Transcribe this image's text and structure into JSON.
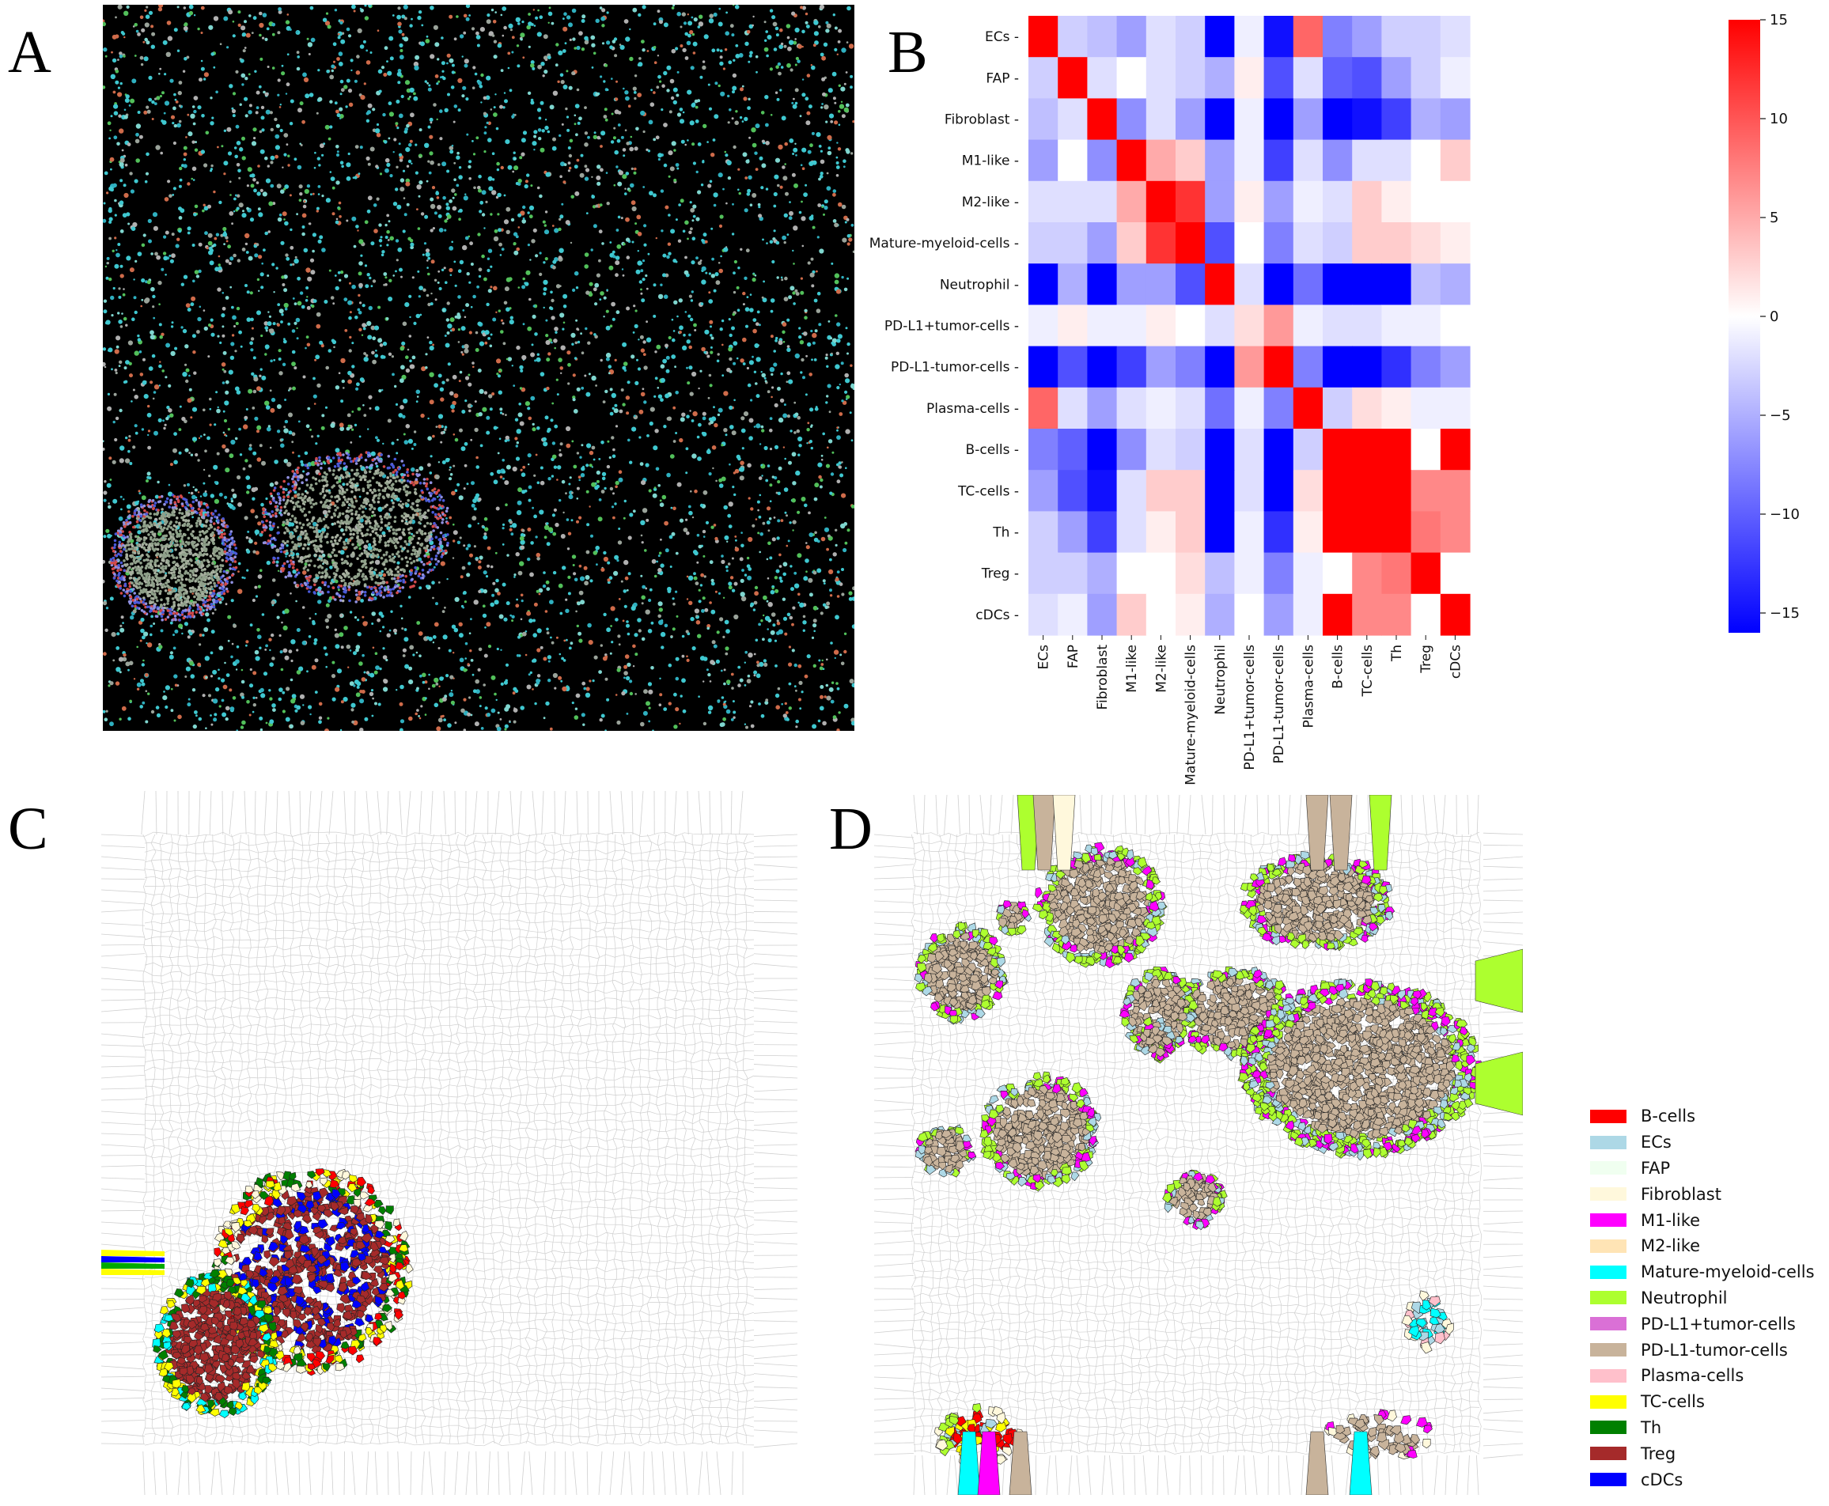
{
  "panels": {
    "a": "A",
    "b": "B",
    "c": "C",
    "d": "D"
  },
  "colors": {
    "heat_low": "#0000ff",
    "heat_mid": "#ffffff",
    "heat_high": "#ff0000",
    "tissue_background": "#000000",
    "voronoi_edge": "#cfcfcf"
  },
  "chart_data": {
    "type": "heatmap",
    "rows": [
      "ECs",
      "FAP",
      "Fibroblast",
      "M1-like",
      "M2-like",
      "Mature-myeloid-cells",
      "Neutrophil",
      "PD-L1+tumor-cells",
      "PD-L1-tumor-cells",
      "Plasma-cells",
      "B-cells",
      "TC-cells",
      "Th",
      "Treg",
      "cDCs"
    ],
    "columns": [
      "ECs",
      "FAP",
      "Fibroblast",
      "M1-like",
      "M2-like",
      "Mature-myeloid-cells",
      "Neutrophil",
      "PD-L1+tumor-cells",
      "PD-L1-tumor-cells",
      "Plasma-cells",
      "B-cells",
      "TC-cells",
      "Th",
      "Treg",
      "cDCs"
    ],
    "values": [
      [
        15,
        -3,
        -4,
        -6,
        -2,
        -3,
        -16,
        -1,
        -15,
        9,
        -8,
        -6,
        -3,
        -3,
        -2
      ],
      [
        -3,
        15,
        -2,
        0,
        -2,
        -3,
        -5,
        1,
        -11,
        -2,
        -10,
        -11,
        -6,
        -3,
        -1
      ],
      [
        -4,
        -2,
        15,
        -7,
        -2,
        -6,
        -16,
        -1,
        -16,
        -6,
        -16,
        -15,
        -12,
        -5,
        -6
      ],
      [
        -6,
        0,
        -7,
        15,
        5,
        3,
        -6,
        -1,
        -12,
        -2,
        -7,
        -2,
        -2,
        0,
        3
      ],
      [
        -2,
        -2,
        -2,
        5,
        15,
        12,
        -6,
        1,
        -6,
        -1,
        -2,
        3,
        1,
        0,
        0
      ],
      [
        -3,
        -3,
        -6,
        3,
        12,
        15,
        -11,
        0,
        -8,
        -2,
        -3,
        3,
        3,
        2,
        1
      ],
      [
        -16,
        -5,
        -16,
        -6,
        -6,
        -11,
        15,
        -2,
        -16,
        -9,
        -16,
        -16,
        -16,
        -4,
        -5
      ],
      [
        -1,
        1,
        -1,
        -1,
        1,
        0,
        -2,
        2,
        6,
        -1,
        -2,
        -2,
        -1,
        -1,
        0
      ],
      [
        -16,
        -11,
        -16,
        -12,
        -6,
        -8,
        -16,
        6,
        15,
        -8,
        -16,
        -16,
        -13,
        -8,
        -6
      ],
      [
        9,
        -2,
        -6,
        -2,
        -1,
        -2,
        -9,
        -1,
        -8,
        15,
        -3,
        2,
        1,
        -1,
        -1
      ],
      [
        -8,
        -10,
        -16,
        -7,
        -2,
        -3,
        -16,
        -2,
        -16,
        -3,
        15,
        15,
        15,
        0,
        15
      ],
      [
        -6,
        -11,
        -15,
        -2,
        3,
        3,
        -16,
        -2,
        -16,
        2,
        15,
        15,
        15,
        7,
        7
      ],
      [
        -3,
        -6,
        -12,
        -2,
        1,
        3,
        -16,
        -1,
        -13,
        1,
        15,
        15,
        15,
        8,
        7
      ],
      [
        -3,
        -3,
        -5,
        0,
        0,
        2,
        -4,
        -1,
        -8,
        -1,
        0,
        7,
        8,
        15,
        0
      ],
      [
        -2,
        -1,
        -6,
        3,
        0,
        1,
        -5,
        0,
        -6,
        -1,
        15,
        7,
        7,
        0,
        15
      ]
    ],
    "vmin": -16,
    "vmax": 15,
    "colorbar_ticks": [
      15,
      10,
      5,
      0,
      -5,
      -10,
      -15
    ],
    "colorbar_tick_labels": [
      "15",
      "10",
      "5",
      "0",
      "−5",
      "−10",
      "−15"
    ]
  },
  "legend": [
    {
      "label": "B-cells",
      "color": "#ff0000"
    },
    {
      "label": "ECs",
      "color": "#add8e6"
    },
    {
      "label": "FAP",
      "color": "#f0fff0"
    },
    {
      "label": "Fibroblast",
      "color": "#fff8dc"
    },
    {
      "label": "M1-like",
      "color": "#ff00ff"
    },
    {
      "label": "M2-like",
      "color": "#ffe4b5"
    },
    {
      "label": "Mature-myeloid-cells",
      "color": "#00ffff"
    },
    {
      "label": "Neutrophil",
      "color": "#adff2f"
    },
    {
      "label": "PD-L1+tumor-cells",
      "color": "#da70d6"
    },
    {
      "label": "PD-L1-tumor-cells",
      "color": "#c8b39b"
    },
    {
      "label": "Plasma-cells",
      "color": "#ffc0cb"
    },
    {
      "label": "TC-cells",
      "color": "#ffff00"
    },
    {
      "label": "Th",
      "color": "#008000"
    },
    {
      "label": "Treg",
      "color": "#a52a2a"
    },
    {
      "label": "cDCs",
      "color": "#0000ff"
    }
  ]
}
